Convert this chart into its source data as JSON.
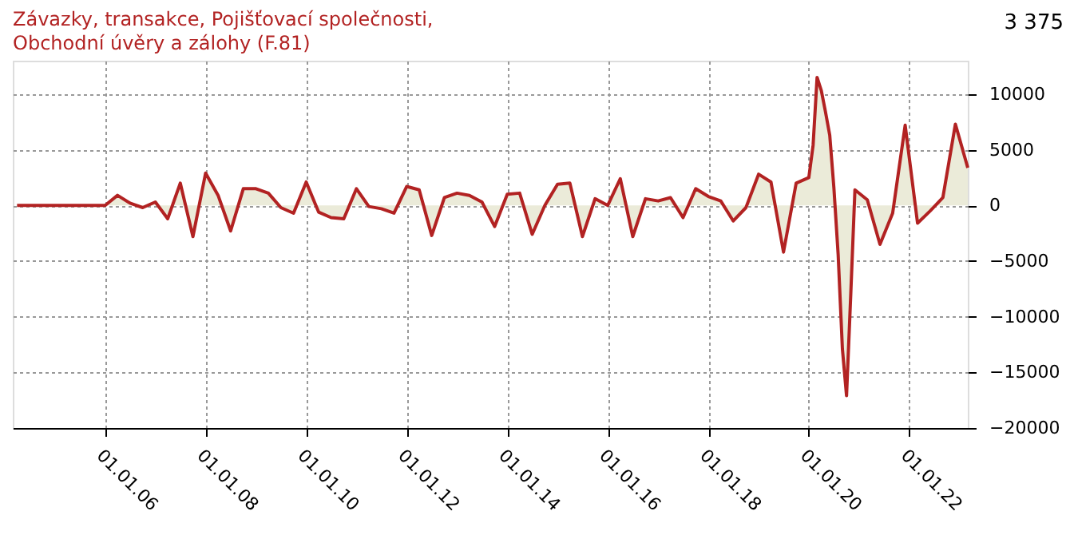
{
  "chart_data": {
    "type": "area",
    "title": "Závazky, transakce, Pojišťovací společnosti, Obchodní úvěry a zálohy (F.81)",
    "annotations": [
      "3 375"
    ],
    "x": [
      "2004-04",
      "2004-07",
      "2004-10",
      "2005-01",
      "2005-04",
      "2005-07",
      "2005-10",
      "2006-01",
      "2006-04",
      "2006-07",
      "2006-10",
      "2007-01",
      "2007-04",
      "2007-07",
      "2007-10",
      "2008-01",
      "2008-04",
      "2008-07",
      "2008-10",
      "2009-01",
      "2009-04",
      "2009-07",
      "2009-10",
      "2010-01",
      "2010-04",
      "2010-07",
      "2010-10",
      "2011-01",
      "2011-04",
      "2011-07",
      "2011-10",
      "2012-01",
      "2012-04",
      "2012-07",
      "2012-10",
      "2013-01",
      "2013-04",
      "2013-07",
      "2013-10",
      "2014-01",
      "2014-04",
      "2014-07",
      "2014-10",
      "2015-01",
      "2015-04",
      "2015-07",
      "2015-10",
      "2016-01",
      "2016-04",
      "2016-07",
      "2016-10",
      "2017-01",
      "2017-04",
      "2017-07",
      "2017-10",
      "2018-01",
      "2018-04",
      "2018-07",
      "2018-10",
      "2019-01",
      "2019-04",
      "2019-07",
      "2019-10",
      "2020-01",
      "2020-02",
      "2020-03",
      "2020-04",
      "2020-05",
      "2020-06",
      "2020-07",
      "2020-08",
      "2020-09",
      "2020-10",
      "2020-11",
      "2020-12",
      "2021-03",
      "2021-06",
      "2021-09",
      "2021-12",
      "2022-03",
      "2022-06",
      "2022-09",
      "2022-12",
      "2023-03"
    ],
    "series": [
      {
        "color": "#b22222",
        "values": [
          0,
          0,
          0,
          0,
          0,
          0,
          0,
          0,
          900,
          200,
          -200,
          300,
          -1200,
          2000,
          -2800,
          2900,
          900,
          -2300,
          1500,
          1500,
          1100,
          -200,
          -700,
          2100,
          -600,
          -1100,
          -1200,
          1500,
          -100,
          -300,
          -700,
          1700,
          1400,
          -2700,
          700,
          1100,
          900,
          300,
          -1900,
          1000,
          1100,
          -2600,
          0,
          1900,
          2000,
          -2800,
          600,
          0,
          2400,
          -2800,
          600,
          400,
          700,
          -1100,
          1500,
          800,
          400,
          -1400,
          -200,
          2800,
          2100,
          -4200,
          2000,
          2500,
          5400,
          11500,
          10300,
          8400,
          6300,
          1600,
          -4400,
          -12900,
          -17100,
          -7900,
          1400,
          500,
          -3500,
          -700,
          7200,
          -1600,
          -500,
          700,
          7300,
          3375
        ]
      }
    ],
    "xlim": [
      "2004-03-01",
      "2023-03-01"
    ],
    "xticks": [
      {
        "value": "2006-01-01",
        "label": "01.01.06"
      },
      {
        "value": "2008-01-01",
        "label": "01.01.08"
      },
      {
        "value": "2010-01-01",
        "label": "01.01.10"
      },
      {
        "value": "2012-01-01",
        "label": "01.01.12"
      },
      {
        "value": "2014-01-01",
        "label": "01.01.14"
      },
      {
        "value": "2016-01-01",
        "label": "01.01.16"
      },
      {
        "value": "2018-01-01",
        "label": "01.01.18"
      },
      {
        "value": "2020-01-01",
        "label": "01.01.20"
      },
      {
        "value": "2022-01-01",
        "label": "01.01.22"
      }
    ],
    "ylim": [
      -20000,
      13000
    ],
    "yticks": [
      -20000,
      -15000,
      -10000,
      -5000,
      0,
      5000,
      10000
    ],
    "grid": true
  }
}
